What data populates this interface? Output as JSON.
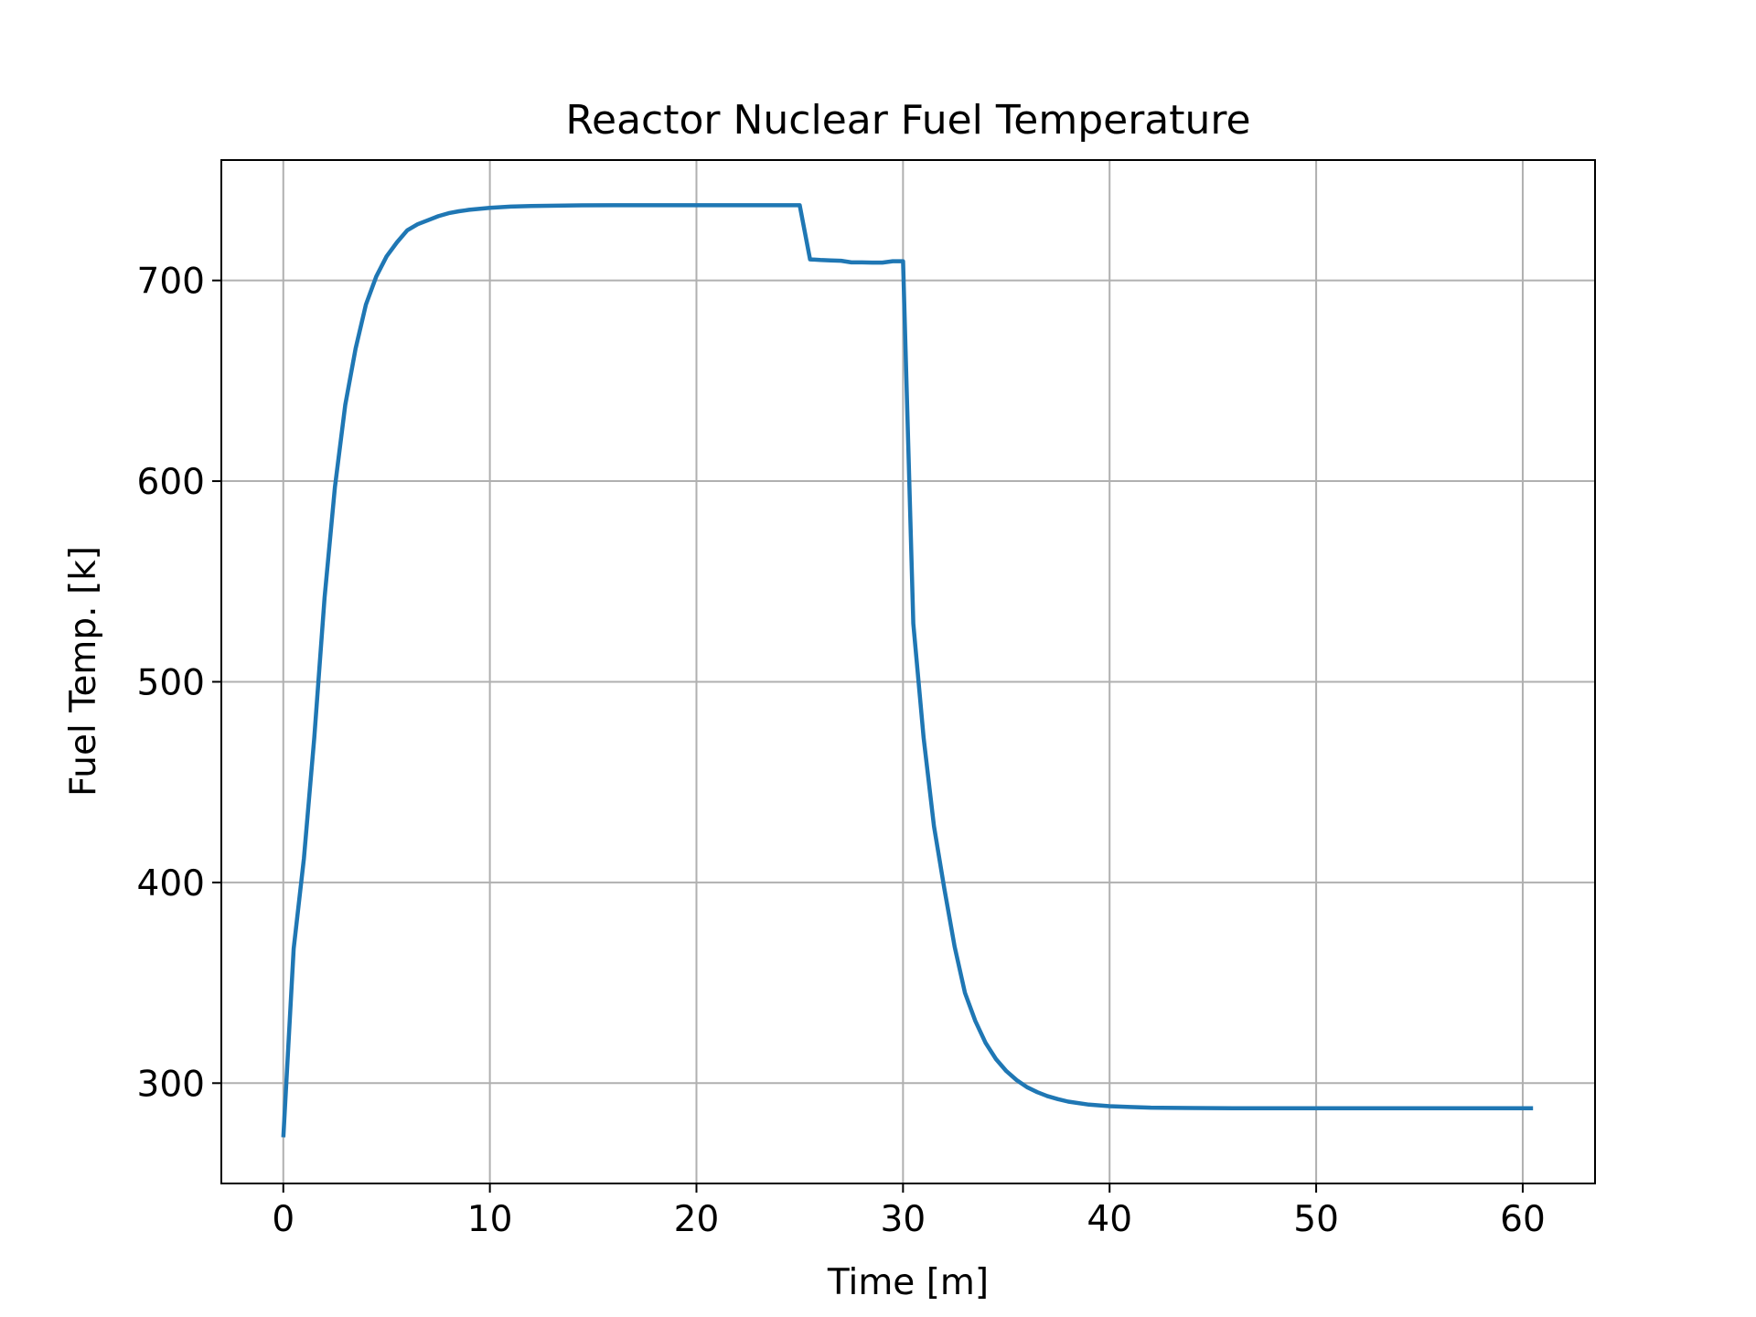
{
  "chart_data": {
    "type": "line",
    "title": "Reactor Nuclear Fuel Temperature",
    "xlabel": "Time [m]",
    "ylabel": "Fuel Temp. [k]",
    "xlim": [
      -3,
      63.5
    ],
    "ylim": [
      250,
      760
    ],
    "xticks": [
      0,
      10,
      20,
      30,
      40,
      50,
      60
    ],
    "yticks": [
      300,
      400,
      500,
      600,
      700
    ],
    "grid": true,
    "color": "#1f77b4",
    "series": [
      {
        "x": [
          0,
          0.5,
          1,
          1.5,
          2,
          2.5,
          3,
          3.5,
          4,
          4.5,
          5,
          5.5,
          6,
          6.5,
          7,
          7.5,
          8,
          8.5,
          9,
          10,
          11,
          12,
          14,
          16,
          18,
          20,
          22,
          24,
          25,
          25.5,
          26,
          26.5,
          27,
          27.5,
          28,
          28.5,
          29,
          29.5,
          30,
          30.5,
          31,
          31.5,
          32,
          32.5,
          33,
          33.5,
          34,
          34.5,
          35,
          35.5,
          36,
          36.5,
          37,
          37.5,
          38,
          39,
          40,
          41,
          42,
          44,
          46,
          48,
          50,
          52,
          54,
          56,
          58,
          60,
          60.5
        ],
        "y": [
          273,
          367,
          412,
          472,
          542,
          597,
          638,
          666,
          688,
          702,
          712,
          719,
          725,
          728,
          730,
          732,
          733.5,
          734.5,
          735.2,
          736.2,
          736.8,
          737.1,
          737.4,
          737.5,
          737.5,
          737.5,
          737.5,
          737.5,
          737.5,
          710.5,
          710.2,
          710.0,
          709.8,
          709.0,
          709.0,
          708.9,
          708.9,
          709.6,
          709.6,
          529,
          472,
          428,
          397,
          368,
          345,
          331,
          320,
          312,
          306,
          301.5,
          298,
          295.5,
          293.5,
          292,
          290.8,
          289.3,
          288.5,
          288.1,
          287.8,
          287.6,
          287.5,
          287.5,
          287.5,
          287.5,
          287.5,
          287.5,
          287.5,
          287.5,
          287.5
        ]
      }
    ]
  }
}
